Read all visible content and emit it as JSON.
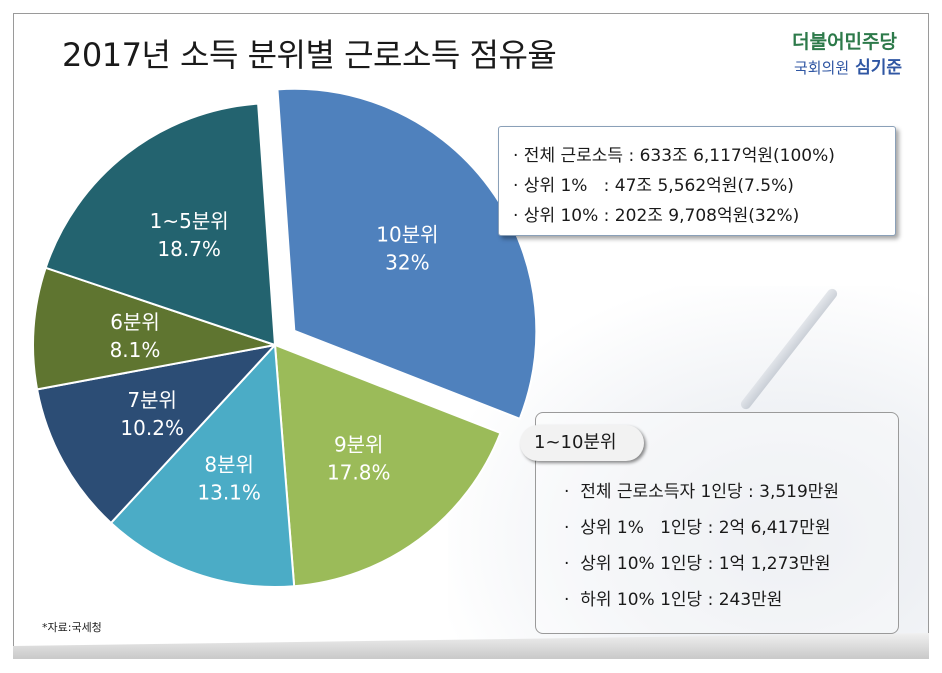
{
  "title": "2017년 소득 분위별 근로소득 점유율",
  "logo": {
    "party": "더불어민주당",
    "role": "국회의원",
    "name": "심기준"
  },
  "chart_data": {
    "type": "pie",
    "categories": [
      "10분위",
      "9분위",
      "8분위",
      "7분위",
      "6분위",
      "1~5분위"
    ],
    "values": [
      32,
      17.8,
      13.1,
      10.2,
      8.1,
      18.7
    ],
    "value_labels": [
      "32%",
      "17.8%",
      "13.1%",
      "10.2%",
      "8.1%",
      "18.7%"
    ],
    "colors": [
      "#4f81bd",
      "#9bbb59",
      "#4bacc6",
      "#2c4d75",
      "#5f7530",
      "#23636f"
    ],
    "exploded": "10분위",
    "title": "2017년 소득 분위별 근로소득 점유율"
  },
  "summary_box": {
    "rows": [
      "· 전체 근로소득 : 633조 6,117억원(100%)",
      "· 상위 1%   : 47조 5,562억원(7.5%)",
      "· 상위 10% : 202조 9,708억원(32%)"
    ]
  },
  "per_person_box": {
    "tag": "1~10분위",
    "rows": [
      "·  전체 근로소득자 1인당 : 3,519만원",
      "·  상위 1%   1인당 : 2억 6,417만원",
      "·  상위 10% 1인당 : 1억 1,273만원",
      "·  하위 10% 1인당 : 243만원"
    ]
  },
  "source": "*자료:국세청"
}
